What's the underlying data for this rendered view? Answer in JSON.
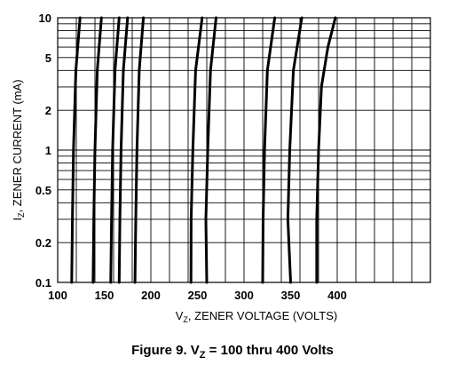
{
  "chart_data": {
    "type": "line",
    "x_scale": "linear",
    "y_scale": "log",
    "xlim": [
      100,
      500
    ],
    "ylim": [
      0.1,
      10
    ],
    "x_ticks": [
      "100",
      "150",
      "200",
      "250",
      "300",
      "350",
      "400"
    ],
    "y_ticks": [
      {
        "value": 10,
        "label": "10"
      },
      {
        "value": 5,
        "label": "5"
      },
      {
        "value": 2,
        "label": "2"
      },
      {
        "value": 1,
        "label": "1"
      },
      {
        "value": 0.5,
        "label": "0.5"
      },
      {
        "value": 0.2,
        "label": "0.2"
      },
      {
        "value": 0.1,
        "label": "0.1"
      }
    ],
    "xlabel": {
      "main": "V",
      "sub": "Z",
      "rest": ", ZENER VOLTAGE (VOLTS)"
    },
    "ylabel": {
      "main": "I",
      "sub": "Z",
      "rest": ", ZENER CURRENT (mA)"
    },
    "grid": true,
    "series": [
      {
        "points": [
          [
            115,
            0.1
          ],
          [
            115.8,
            0.3
          ],
          [
            117,
            1
          ],
          [
            119.5,
            4
          ],
          [
            124,
            10
          ]
        ]
      },
      {
        "points": [
          [
            138,
            0.1
          ],
          [
            138.8,
            0.3
          ],
          [
            140,
            1
          ],
          [
            142.5,
            4
          ],
          [
            147,
            10
          ]
        ]
      },
      {
        "points": [
          [
            157,
            0.1
          ],
          [
            157.8,
            0.3
          ],
          [
            159,
            1
          ],
          [
            161.5,
            4
          ],
          [
            166,
            10
          ]
        ]
      },
      {
        "points": [
          [
            166,
            0.1
          ],
          [
            166.8,
            0.3
          ],
          [
            168,
            1
          ],
          [
            170.5,
            4
          ],
          [
            175,
            10
          ]
        ]
      },
      {
        "points": [
          [
            183,
            0.1
          ],
          [
            183.8,
            0.3
          ],
          [
            185,
            1
          ],
          [
            187.5,
            4
          ],
          [
            192,
            10
          ]
        ]
      },
      {
        "points": [
          [
            243,
            0.1
          ],
          [
            243.2,
            0.3
          ],
          [
            245,
            1
          ],
          [
            248,
            4
          ],
          [
            255,
            10
          ]
        ]
      },
      {
        "points": [
          [
            260,
            0.1
          ],
          [
            259,
            0.3
          ],
          [
            261,
            1
          ],
          [
            264,
            4
          ],
          [
            270,
            10
          ]
        ]
      },
      {
        "points": [
          [
            320,
            0.1
          ],
          [
            320.5,
            0.3
          ],
          [
            322,
            1
          ],
          [
            325,
            4
          ],
          [
            333,
            10
          ]
        ]
      },
      {
        "points": [
          [
            350,
            0.1
          ],
          [
            347,
            0.3
          ],
          [
            349,
            1
          ],
          [
            353,
            4
          ],
          [
            362,
            10
          ]
        ]
      },
      {
        "points": [
          [
            378,
            0.1
          ],
          [
            378,
            0.3
          ],
          [
            380,
            1
          ],
          [
            383,
            3
          ],
          [
            390,
            6
          ],
          [
            398,
            10
          ]
        ]
      }
    ]
  },
  "caption": {
    "prefix": "Figure 9. V",
    "sub": "Z",
    "suffix": " = 100 thru 400 Volts"
  }
}
